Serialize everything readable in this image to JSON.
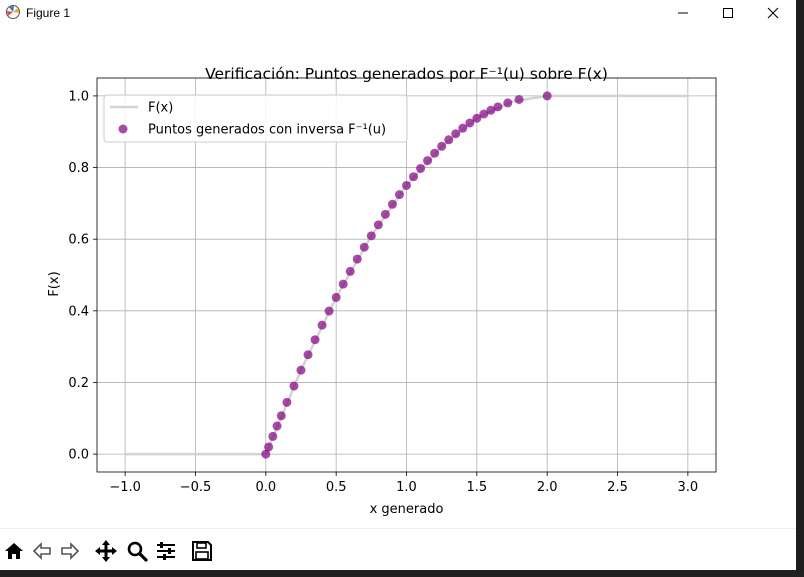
{
  "window": {
    "title": "Figure 1"
  },
  "toolbar": {
    "buttons": [
      "home-icon",
      "back-icon",
      "forward-icon",
      "pan-icon",
      "zoom-icon",
      "configure-subplots-icon",
      "save-icon"
    ]
  },
  "colors": {
    "cdf_line": "#d3d3d3",
    "points": "#800080",
    "grid": "#b0b0b0",
    "axes": "#000000"
  },
  "chart_data": {
    "type": "scatter",
    "title": "Verificación: Puntos generados por F⁻¹(u) sobre F(x)",
    "xlabel": "x generado",
    "ylabel": "F(x)",
    "xlim": [
      -1.2,
      3.2
    ],
    "ylim": [
      -0.05,
      1.05
    ],
    "xticks": [
      -1.0,
      -0.5,
      0.0,
      0.5,
      1.0,
      1.5,
      2.0,
      2.5,
      3.0
    ],
    "xtick_labels": [
      "−1.0",
      "−0.5",
      "0.0",
      "0.5",
      "1.0",
      "1.5",
      "2.0",
      "2.5",
      "3.0"
    ],
    "yticks": [
      0.0,
      0.2,
      0.4,
      0.6,
      0.8,
      1.0
    ],
    "ytick_labels": [
      "0.0",
      "0.2",
      "0.4",
      "0.6",
      "0.8",
      "1.0"
    ],
    "grid": true,
    "legend": {
      "placement": "upper left",
      "entries": [
        "F(x)",
        "Puntos generados con inversa F⁻¹(u)"
      ]
    },
    "series": [
      {
        "name": "F(x)",
        "kind": "line",
        "x": [
          -1.0,
          0.0,
          0.25,
          0.5,
          0.75,
          1.0,
          1.25,
          1.5,
          1.75,
          2.0,
          3.0
        ],
        "y": [
          0.0,
          0.0,
          0.234375,
          0.4375,
          0.609375,
          0.75,
          0.859375,
          0.9375,
          0.984375,
          1.0,
          1.0
        ]
      },
      {
        "name": "Puntos generados con inversa F⁻¹(u)",
        "kind": "scatter",
        "x": [
          0.0,
          0.02,
          0.05,
          0.08,
          0.11,
          0.15,
          0.2,
          0.25,
          0.3,
          0.35,
          0.4,
          0.45,
          0.5,
          0.55,
          0.6,
          0.65,
          0.7,
          0.75,
          0.8,
          0.85,
          0.9,
          0.95,
          1.0,
          1.05,
          1.1,
          1.15,
          1.2,
          1.25,
          1.3,
          1.35,
          1.4,
          1.45,
          1.5,
          1.55,
          1.6,
          1.65,
          1.72,
          1.8,
          2.0
        ],
        "y": [
          0.0,
          0.0199,
          0.0494,
          0.0784,
          0.107,
          0.1444,
          0.19,
          0.2344,
          0.2775,
          0.3194,
          0.36,
          0.3994,
          0.4375,
          0.4744,
          0.51,
          0.5444,
          0.5775,
          0.6094,
          0.64,
          0.6694,
          0.6975,
          0.7244,
          0.75,
          0.7744,
          0.7975,
          0.8194,
          0.84,
          0.8594,
          0.8775,
          0.8944,
          0.91,
          0.9244,
          0.9375,
          0.9494,
          0.96,
          0.9694,
          0.9804,
          0.99,
          1.0
        ]
      }
    ]
  }
}
